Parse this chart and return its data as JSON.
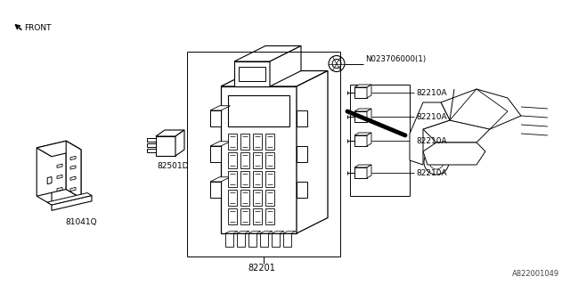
{
  "background_color": "#ffffff",
  "line_color": "#000000",
  "text_color": "#000000",
  "part_labels": {
    "bottom_center": "82201",
    "left_bracket": "81041Q",
    "middle_relay": "82501D",
    "nut": "N023706000(1)",
    "fuse_clips": [
      "82210A",
      "82210A",
      "82210A",
      "82210A"
    ],
    "watermark": "A822001049",
    "front_label": "FRONT"
  },
  "fig_width": 6.4,
  "fig_height": 3.2,
  "dpi": 100
}
